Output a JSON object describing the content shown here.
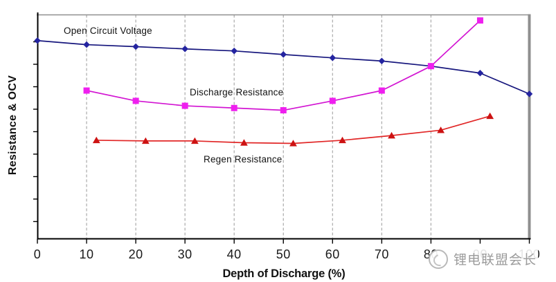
{
  "chart_data": {
    "type": "line",
    "title": "",
    "xlabel": "Depth of Discharge (%)",
    "ylabel": "Resistance & OCV",
    "x_axis": {
      "min": 0,
      "max": 100,
      "tick_labels": [
        "0",
        "10",
        "20",
        "30",
        "40",
        "50",
        "60",
        "70",
        "80",
        "90",
        "100"
      ],
      "gridlines_at": [
        10,
        20,
        30,
        40,
        50,
        60,
        70,
        80
      ],
      "gridline_style": "vertical dashed"
    },
    "y_axis": {
      "min": 0,
      "max": 1,
      "tick_count": 9,
      "numeric_labels_shown": false,
      "note": "axis shows unlabeled tick marks only; series y values are normalized plot-height fractions (0 = x-axis, 1 = top frame)"
    },
    "legend_position": "none - series identified by inline text annotations",
    "series": [
      {
        "name": "Open Circuit Voltage",
        "line_color": "#16167d",
        "marker": "diamond",
        "marker_color": "#2424a0",
        "x": [
          0,
          10,
          20,
          30,
          40,
          50,
          60,
          70,
          80,
          90,
          100
        ],
        "y": [
          0.885,
          0.867,
          0.858,
          0.848,
          0.839,
          0.823,
          0.808,
          0.794,
          0.771,
          0.74,
          0.647
        ]
      },
      {
        "name": "Discharge Resistance",
        "line_color": "#d214d2",
        "marker": "square",
        "marker_color": "#ef1fef",
        "x": [
          10,
          20,
          30,
          40,
          50,
          60,
          70,
          80,
          90
        ],
        "y": [
          0.662,
          0.616,
          0.594,
          0.584,
          0.574,
          0.616,
          0.662,
          0.771,
          0.975
        ]
      },
      {
        "name": "Regen Resistance",
        "line_color": "#e12626",
        "marker": "triangle-up",
        "marker_color": "#cd1212",
        "x": [
          12,
          22,
          32,
          42,
          52,
          62,
          72,
          82,
          92
        ],
        "y": [
          0.44,
          0.437,
          0.437,
          0.429,
          0.426,
          0.44,
          0.461,
          0.485,
          0.548
        ]
      }
    ]
  },
  "watermark": {
    "text": "锂电联盟会长",
    "color": "#9b9b9b",
    "logo": "circular-badge"
  },
  "frame": {
    "background": "#ffffff",
    "axis_color": "#000000",
    "border_color": "#8f8f8f",
    "gridline_color": "#a9a9a9"
  }
}
